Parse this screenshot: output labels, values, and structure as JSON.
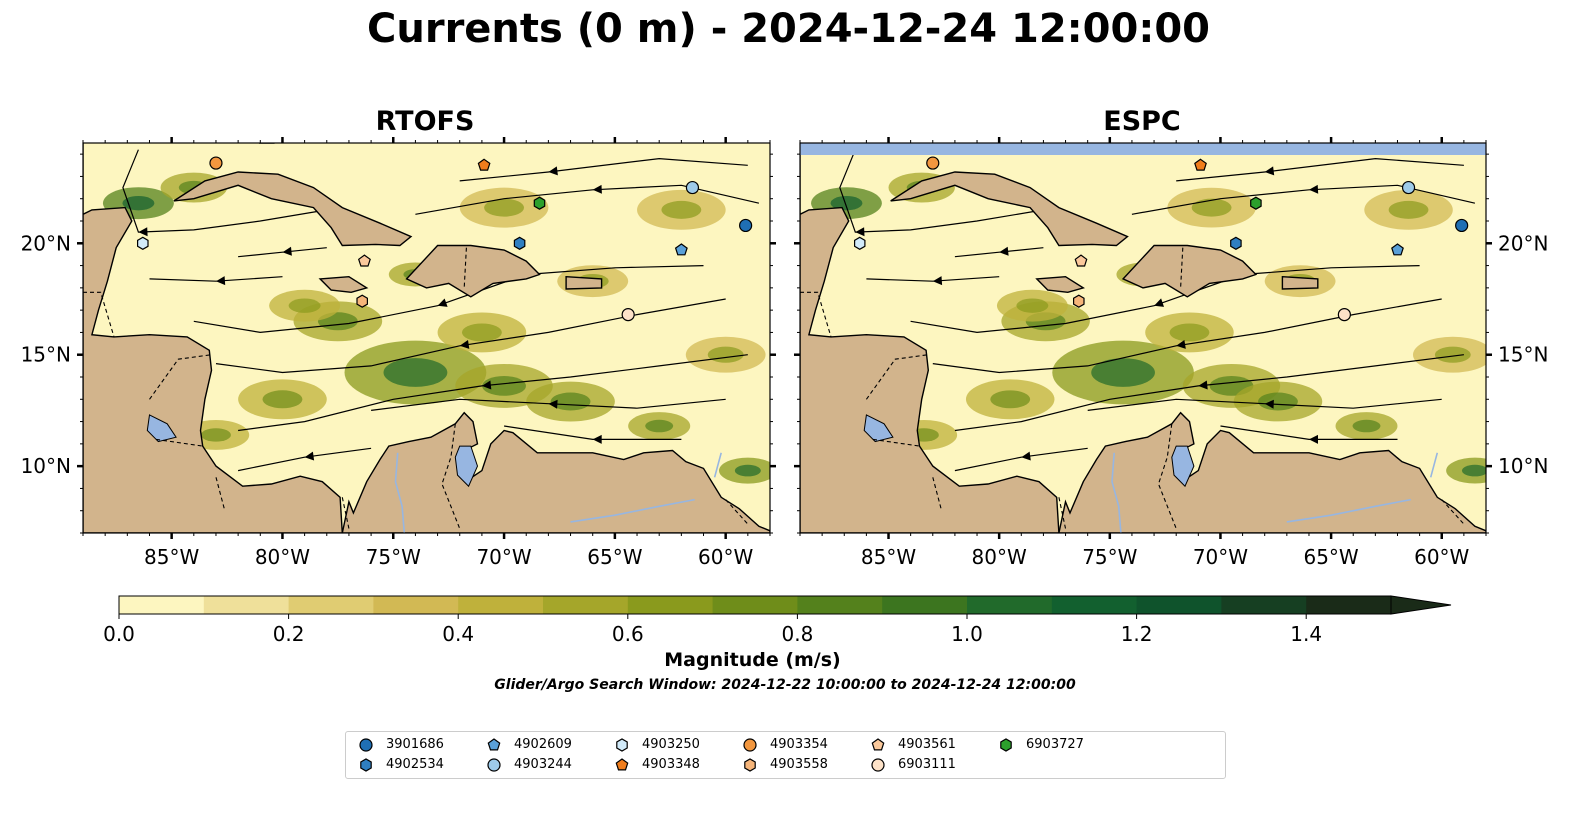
{
  "title": "Currents (0 m) - 2024-12-24 12:00:00",
  "panels": [
    {
      "name": "RTOFS"
    },
    {
      "name": "ESPC"
    }
  ],
  "map_extent": {
    "lon": [
      -89,
      -58
    ],
    "lat": [
      7,
      24.5
    ]
  },
  "lon_ticks": [
    {
      "value": -85,
      "label": "85°W"
    },
    {
      "value": -80,
      "label": "80°W"
    },
    {
      "value": -75,
      "label": "75°W"
    },
    {
      "value": -70,
      "label": "70°W"
    },
    {
      "value": -65,
      "label": "65°W"
    },
    {
      "value": -60,
      "label": "60°W"
    }
  ],
  "lat_ticks": [
    {
      "value": 20,
      "label": "20°N"
    },
    {
      "value": 15,
      "label": "15°N"
    },
    {
      "value": 10,
      "label": "10°N"
    }
  ],
  "colorbar": {
    "label": "Magnitude (m/s)",
    "min": 0.0,
    "max": 1.5,
    "extend": "max",
    "tick_values": [
      0.0,
      0.2,
      0.4,
      0.6,
      0.8,
      1.0,
      1.2,
      1.4
    ],
    "tick_labels": [
      "0.0",
      "0.2",
      "0.4",
      "0.6",
      "0.8",
      "1.0",
      "1.2",
      "1.4"
    ],
    "colors": [
      "#fdf6c0",
      "#efe09a",
      "#e0cc72",
      "#d2b954",
      "#bfb13b",
      "#a5a62a",
      "#8a9a1d",
      "#6f8d1a",
      "#54811c",
      "#3c751f",
      "#216a2b",
      "#12602f",
      "#0f532c",
      "#163f22",
      "#1a2b18"
    ]
  },
  "search_window_text": "Glider/Argo Search Window: 2024-12-22 10:00:00 to 2024-12-24 12:00:00",
  "colors": {
    "land": "#d2b48c",
    "lakes": "#97b6e1",
    "rivers": "#97b6e1",
    "ocean_low": "#fdf6c0",
    "ocean_high": "#1f5d1b"
  },
  "floats": [
    {
      "id": "3901686",
      "marker": "circle",
      "color": "#1f6fb4",
      "lon": -59.1,
      "lat": 20.8
    },
    {
      "id": "4902534",
      "marker": "hexagon",
      "color": "#2f7fc1",
      "lon": -69.3,
      "lat": 20.0
    },
    {
      "id": "4902609",
      "marker": "pentagon",
      "color": "#5aa0d8",
      "lon": -62.0,
      "lat": 19.7
    },
    {
      "id": "4903244",
      "marker": "circle",
      "color": "#9ecbea",
      "lon": -61.5,
      "lat": 22.5
    },
    {
      "id": "4903250",
      "marker": "hexagon",
      "color": "#d2ebfa",
      "lon": -86.3,
      "lat": 20.0
    },
    {
      "id": "4903348",
      "marker": "pentagon",
      "color": "#f07d1c",
      "lon": -70.9,
      "lat": 23.5
    },
    {
      "id": "4903354",
      "marker": "circle",
      "color": "#f3973f",
      "lon": -83.0,
      "lat": 23.6
    },
    {
      "id": "4903558",
      "marker": "hexagon",
      "color": "#f6b57a",
      "lon": -76.4,
      "lat": 17.4
    },
    {
      "id": "4903561",
      "marker": "pentagon",
      "color": "#fbc99c",
      "lon": -76.3,
      "lat": 19.2
    },
    {
      "id": "6903111",
      "marker": "circle",
      "color": "#fde2c8",
      "lon": -64.4,
      "lat": 16.8
    },
    {
      "id": "6903727",
      "marker": "hexagon",
      "color": "#2ca02c",
      "lon": -68.4,
      "lat": 21.8
    }
  ]
}
